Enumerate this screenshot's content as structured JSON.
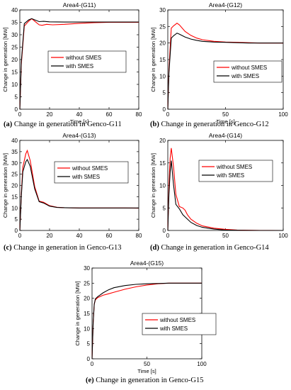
{
  "figure_title": "",
  "chart_data": [
    {
      "type": "line",
      "title": "Area4-(G11)",
      "caption_letter": "(a)",
      "caption_text": "Change in generation in Genco-G11",
      "xlabel": "Time [s]",
      "ylabel": "Change in generation [MW]",
      "xlim": [
        0,
        80
      ],
      "ylim": [
        0,
        40
      ],
      "xticks": [
        0,
        20,
        40,
        60,
        80
      ],
      "yticks": [
        0,
        5,
        10,
        15,
        20,
        25,
        30,
        35,
        40
      ],
      "grid": false,
      "legend_position": "center-right",
      "series": [
        {
          "name": "without SMES",
          "color": "#ff0000",
          "x": [
            0,
            1,
            3,
            6,
            8,
            10,
            13,
            15,
            18,
            22,
            30,
            40,
            50,
            60,
            70,
            80
          ],
          "y": [
            0,
            18,
            33.5,
            35.5,
            36.5,
            35.5,
            34,
            33.8,
            34.2,
            34,
            34.2,
            34.6,
            34.9,
            35,
            35,
            35
          ]
        },
        {
          "name": "with SMES",
          "color": "#000000",
          "x": [
            0,
            1,
            3,
            6,
            8,
            10,
            13,
            16,
            20,
            30,
            40,
            50,
            60,
            70,
            80
          ],
          "y": [
            0,
            19,
            34.5,
            36,
            36.5,
            36,
            35.3,
            35.4,
            35.2,
            35.1,
            35.1,
            35.1,
            35.1,
            35.1,
            35.1
          ]
        }
      ]
    },
    {
      "type": "line",
      "title": "Area4-(G12)",
      "caption_letter": "(b)",
      "caption_text": "Change in generation in Genco-G12",
      "xlabel": "Time [s]",
      "ylabel": "Change in generation [MW]",
      "xlim": [
        0,
        100
      ],
      "ylim": [
        0,
        30
      ],
      "xticks": [
        0,
        50,
        100
      ],
      "yticks": [
        0,
        5,
        10,
        15,
        20,
        25,
        30
      ],
      "grid": false,
      "legend_position": "right",
      "series": [
        {
          "name": "without SMES",
          "color": "#ff0000",
          "x": [
            0,
            1,
            3,
            5,
            8,
            10,
            15,
            20,
            25,
            30,
            40,
            50,
            60,
            70,
            80,
            90,
            100
          ],
          "y": [
            0,
            12,
            24.5,
            25.2,
            26,
            25.5,
            23.5,
            22.3,
            21.5,
            21,
            20.5,
            20.3,
            20.2,
            20.1,
            20,
            20,
            20
          ]
        },
        {
          "name": "with SMES",
          "color": "#000000",
          "x": [
            0,
            1,
            3,
            5,
            8,
            10,
            15,
            20,
            25,
            30,
            40,
            50,
            60,
            70,
            80,
            90,
            100
          ],
          "y": [
            0,
            11,
            21.5,
            22.2,
            23,
            22.7,
            21.8,
            21.2,
            20.8,
            20.5,
            20.3,
            20.2,
            20.1,
            20,
            20,
            20,
            20
          ]
        }
      ]
    },
    {
      "type": "line",
      "title": "Area4-(G13)",
      "caption_letter": "(c)",
      "caption_text": "Change in generation in Genco-G13",
      "xlabel": "",
      "ylabel": "Change in generation [MW]",
      "xlim": [
        0,
        80
      ],
      "ylim": [
        0,
        40
      ],
      "xticks": [
        0,
        20,
        40,
        60,
        80
      ],
      "yticks": [
        0,
        5,
        10,
        15,
        20,
        25,
        30,
        35,
        40
      ],
      "grid": false,
      "legend_position": "top-right",
      "series": [
        {
          "name": "without SMES",
          "color": "#ff0000",
          "x": [
            0,
            1,
            2,
            4,
            5,
            7,
            10,
            13,
            16,
            20,
            25,
            30,
            40,
            50,
            60,
            70,
            80
          ],
          "y": [
            0,
            16,
            28,
            34,
            35.5,
            31,
            19.5,
            13,
            12.5,
            11,
            10.3,
            10.1,
            10,
            10,
            10,
            10,
            9.9
          ]
        },
        {
          "name": "with SMES",
          "color": "#000000",
          "x": [
            0,
            1,
            2,
            4,
            5,
            7,
            10,
            13,
            16,
            20,
            25,
            30,
            40,
            50,
            60,
            70,
            80
          ],
          "y": [
            0,
            15,
            26,
            30.5,
            31.5,
            28.5,
            18.5,
            12.8,
            12.2,
            10.8,
            10.2,
            10.1,
            10,
            10,
            10,
            10,
            10
          ]
        }
      ]
    },
    {
      "type": "line",
      "title": "Area4-(G14)",
      "caption_letter": "(d)",
      "caption_text": "Change in generation in Genco-G14",
      "xlabel": "",
      "ylabel": "Change in generation [MW]",
      "xlim": [
        0,
        100
      ],
      "ylim": [
        0,
        20
      ],
      "xticks": [
        0,
        50,
        100
      ],
      "yticks": [
        0,
        5,
        10,
        15,
        20
      ],
      "grid": false,
      "legend_position": "top-right",
      "series": [
        {
          "name": "without SMES",
          "color": "#ff0000",
          "x": [
            0,
            1,
            2,
            3,
            5,
            7,
            10,
            13,
            15,
            17,
            20,
            25,
            30,
            40,
            50,
            60,
            70,
            80,
            100
          ],
          "y": [
            0,
            10,
            16,
            18.3,
            14,
            8,
            5.3,
            5,
            4.5,
            3.5,
            2.5,
            1.6,
            1,
            0.5,
            0.25,
            0.1,
            0.05,
            0.02,
            0
          ]
        },
        {
          "name": "with SMES",
          "color": "#000000",
          "x": [
            0,
            1,
            2,
            3,
            5,
            7,
            10,
            13,
            15,
            20,
            25,
            30,
            40,
            50,
            60,
            70,
            80,
            100
          ],
          "y": [
            0,
            8,
            13,
            15.5,
            10,
            5.8,
            4.8,
            3.5,
            3,
            1.8,
            1.1,
            0.7,
            0.3,
            0.1,
            0.05,
            0.02,
            0,
            0
          ]
        }
      ]
    },
    {
      "type": "line",
      "title": "Area4-(G15)",
      "caption_letter": "(e)",
      "caption_text": "Change in generation in Genco-G15",
      "xlabel": "Time [s]",
      "ylabel": "Change in generation [MW]",
      "xlim": [
        0,
        100
      ],
      "ylim": [
        0,
        30
      ],
      "xticks": [
        0,
        50,
        100
      ],
      "yticks": [
        0,
        5,
        10,
        15,
        20,
        25,
        30
      ],
      "grid": false,
      "legend_position": "center-right",
      "series": [
        {
          "name": "without SMES",
          "color": "#ff0000",
          "x": [
            0,
            1,
            2,
            3,
            5,
            7,
            10,
            15,
            20,
            30,
            40,
            50,
            60,
            70,
            80,
            90,
            100
          ],
          "y": [
            0,
            12,
            18,
            19.5,
            20.2,
            20.5,
            21,
            21.5,
            22,
            23,
            23.8,
            24.4,
            24.8,
            25,
            25,
            25,
            25
          ]
        },
        {
          "name": "with SMES",
          "color": "#000000",
          "x": [
            0,
            1,
            2,
            3,
            5,
            7,
            10,
            15,
            20,
            30,
            40,
            50,
            60,
            70,
            80,
            90,
            100
          ],
          "y": [
            0,
            12,
            18,
            19.8,
            20.5,
            21,
            21.8,
            22.8,
            23.5,
            24.2,
            24.6,
            24.8,
            24.9,
            25,
            25,
            25,
            25
          ]
        }
      ]
    }
  ]
}
